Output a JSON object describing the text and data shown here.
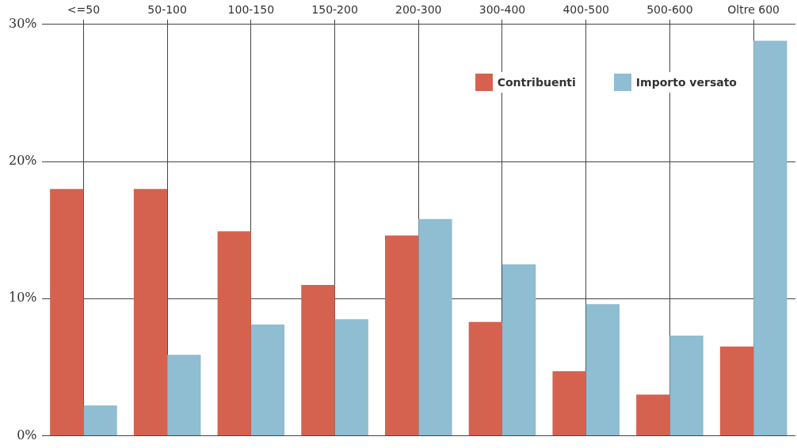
{
  "chart_data": {
    "type": "bar",
    "categories": [
      "<=50",
      "50-100",
      "100-150",
      "150-200",
      "200-300",
      "300-400",
      "400-500",
      "500-600",
      "Oltre 600"
    ],
    "series": [
      {
        "name": "Contribuenti",
        "color": "#d5624f",
        "values": [
          18.0,
          18.0,
          14.9,
          11.0,
          14.6,
          8.3,
          4.7,
          3.0,
          6.5
        ]
      },
      {
        "name": "Importo versato",
        "color": "#8fbdd2",
        "values": [
          2.2,
          5.9,
          8.1,
          8.5,
          15.8,
          12.5,
          9.6,
          7.3,
          28.8
        ]
      }
    ],
    "ylim": [
      0,
      30
    ],
    "yticks": [
      {
        "value": 0,
        "label": "0%"
      },
      {
        "value": 10,
        "label": "10%"
      },
      {
        "value": 20,
        "label": "20%"
      },
      {
        "value": 30,
        "label": "30%"
      }
    ],
    "grid": true,
    "legend": "top right"
  }
}
